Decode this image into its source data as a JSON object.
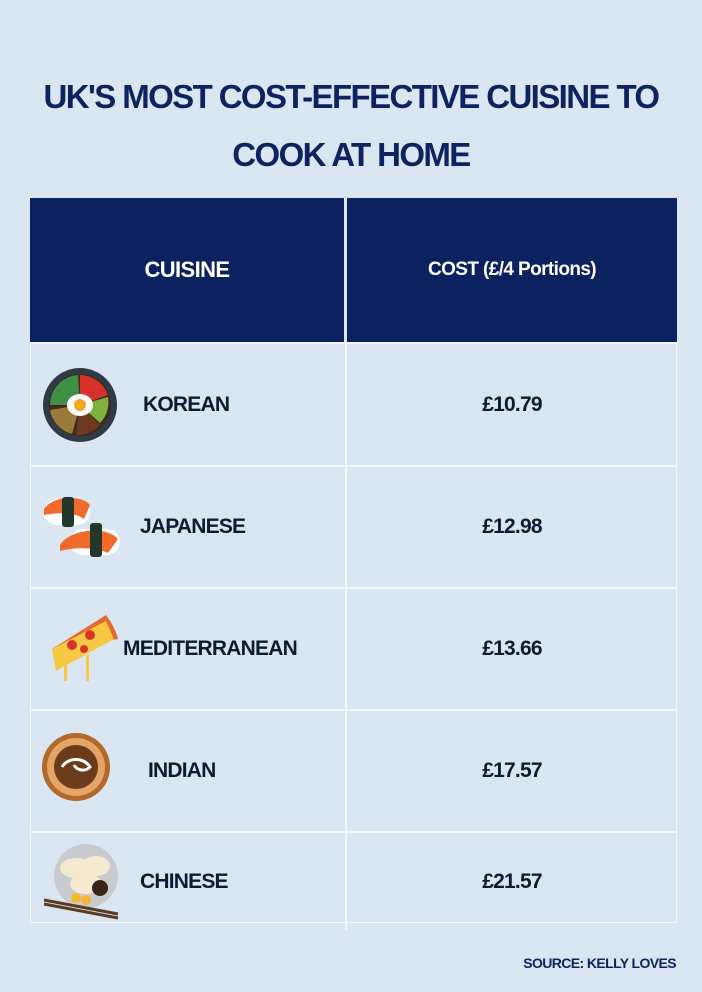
{
  "title": "UK'S MOST COST-EFFECTIVE CUISINE TO COOK AT HOME",
  "table": {
    "header": [
      "CUISINE",
      "COST (£/4 Portions)"
    ],
    "rows": [
      [
        "KOREAN",
        "£10.79"
      ],
      [
        "JAPANESE",
        "£12.98"
      ],
      [
        "MEDITERRANEAN",
        "£13.66"
      ],
      [
        "INDIAN",
        "£17.57"
      ],
      [
        "CHINESE",
        "£21.57"
      ]
    ]
  },
  "source": "SOURCE: KELLY LOVES"
}
